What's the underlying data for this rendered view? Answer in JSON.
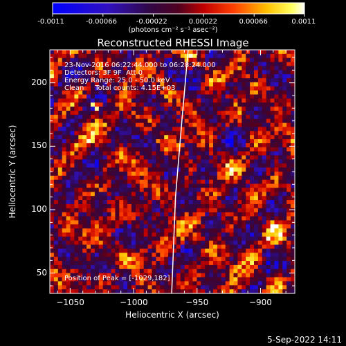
{
  "colorbar": {
    "ticks": [
      "-0.0011",
      "-0.00066",
      "-0.00022",
      "0.00022",
      "0.00066",
      "0.0011"
    ],
    "units": "(photons cm⁻² s⁻¹ asec⁻²)"
  },
  "title": "Reconstructed RHESSI Image",
  "info": {
    "line1": "23-Nov-2016 06:22:44.000 to 06:28:24.000",
    "line2": "Detectors: 3F 9F  Att 0",
    "line3": "Energy Range: 25.0 - 50.0 keV",
    "line4": "Clean     Total counts: 4.15E+03",
    "peak": "Position of Peak = [-1029,182]"
  },
  "timestamp": "5-Sep-2022 14:11",
  "colors": {
    "background": "#000000",
    "limb": "#ffffff"
  },
  "chart_data": {
    "type": "heatmap",
    "title": "Reconstructed RHESSI Image",
    "xlabel": "Heliocentric X (arcsec)",
    "ylabel": "Heliocentric Y (arcsec)",
    "xlim": [
      -1066,
      -873
    ],
    "ylim": [
      34,
      226
    ],
    "xticks": [
      -1050,
      -1000,
      -950,
      -900
    ],
    "yticks": [
      50,
      100,
      150,
      200
    ],
    "xtick_labels": [
      "−1050",
      "−1000",
      "−950",
      "−900"
    ],
    "ytick_labels": [
      "50",
      "100",
      "150",
      "200"
    ],
    "colormap": "blue-purple-red-yellow-white",
    "value_range": [
      -0.0011,
      0.0011
    ],
    "peak_position": [
      -1029,
      182
    ],
    "grid": 60,
    "seed": 7,
    "solar_limb": [
      [
        -957,
        226
      ],
      [
        -962,
        170
      ],
      [
        -967,
        110
      ],
      [
        -970,
        34
      ]
    ]
  }
}
